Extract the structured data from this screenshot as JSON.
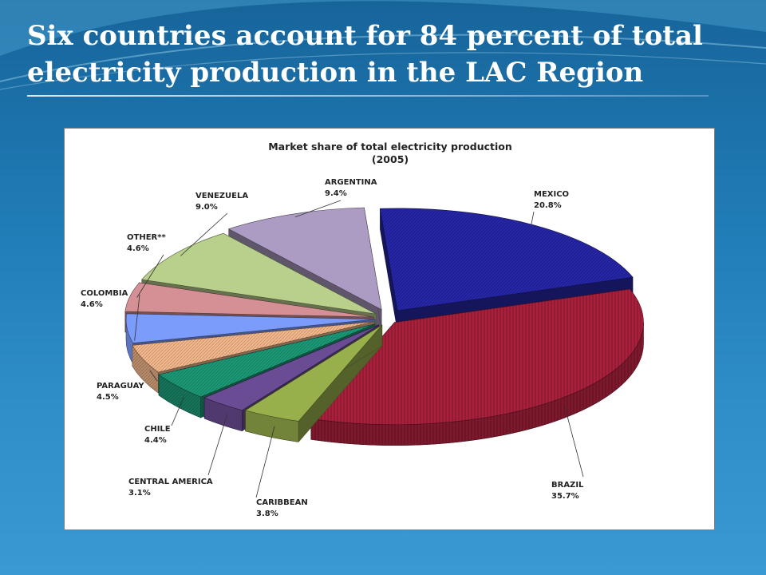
{
  "slide": {
    "title_line1": "Six countries account for 84 percent of total",
    "title_line2": "electricity production in the LAC Region"
  },
  "colors": {
    "background": "#1f7ab4",
    "title_text": "#ffffff"
  },
  "chart_data": {
    "type": "pie",
    "title_line1": "Market share of total electricity production",
    "title_line2": "(2005)",
    "style": "3d-exploded",
    "slices": [
      {
        "label": "MEXICO",
        "value": 20.8,
        "value_label": "20.8%",
        "color": "#2626a8"
      },
      {
        "label": "BRAZIL",
        "value": 35.7,
        "value_label": "35.7%",
        "color": "#a8203c"
      },
      {
        "label": "CARIBBEAN",
        "value": 3.8,
        "value_label": "3.8%",
        "color": "#98b04c"
      },
      {
        "label": "CENTRAL AMERICA",
        "value": 3.1,
        "value_label": "3.1%",
        "color": "#6a4c94"
      },
      {
        "label": "CHILE",
        "value": 4.4,
        "value_label": "4.4%",
        "color": "#1c9a78"
      },
      {
        "label": "PARAGUAY",
        "value": 4.5,
        "value_label": "4.5%",
        "color": "#f4b88c"
      },
      {
        "label": "COLOMBIA",
        "value": 4.6,
        "value_label": "4.6%",
        "color": "#7c9cfc"
      },
      {
        "label": "OTHER**",
        "value": 4.6,
        "value_label": "4.6%",
        "color": "#d49094"
      },
      {
        "label": "VENEZUELA",
        "value": 9.0,
        "value_label": "9.0%",
        "color": "#b8d08c"
      },
      {
        "label": "ARGENTINA",
        "value": 9.4,
        "value_label": "9.4%",
        "color": "#ac9cc4"
      }
    ]
  }
}
